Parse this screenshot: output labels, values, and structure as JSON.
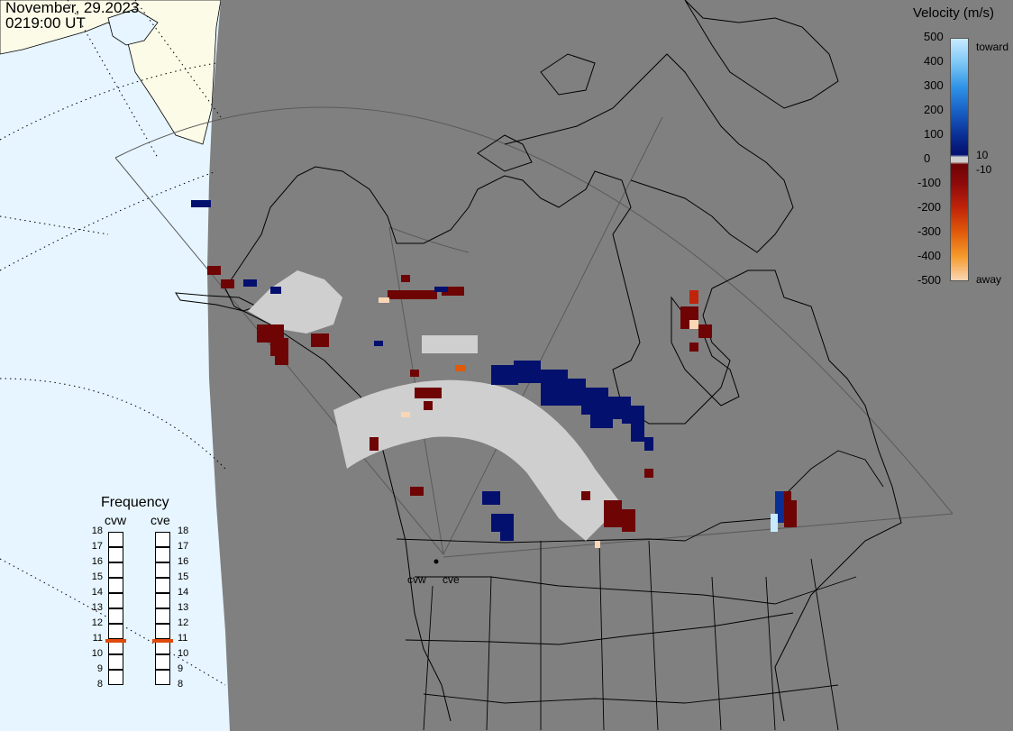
{
  "header": {
    "date": "November, 29.2023",
    "time": "0219:00 UT"
  },
  "velocity_scale": {
    "title": "Velocity (m/s)",
    "ticks": [
      "500",
      "400",
      "300",
      "200",
      "100",
      "0",
      "-100",
      "-200",
      "-300",
      "-400",
      "-500"
    ],
    "label_toward": "toward",
    "label_away": "away",
    "label_pos_threshold": "10",
    "label_neg_threshold": "-10",
    "colors": {
      "toward_500": "#c7eaff",
      "toward_400": "#7dc8f5",
      "toward_300": "#2f93e6",
      "toward_200": "#1860c6",
      "toward_100": "#0a2f94",
      "toward_10": "#04106e",
      "zero": "#cfcfcf",
      "away_10": "#6e0404",
      "away_100": "#8e0a0a",
      "away_200": "#c0240a",
      "away_300": "#e05a0a",
      "away_400": "#f59a2a",
      "away_500": "#fad6b4"
    }
  },
  "radars": [
    {
      "name": "cvw"
    },
    {
      "name": "cve"
    }
  ],
  "frequency_panel": {
    "title": "Frequency",
    "columns": [
      {
        "name": "cvw",
        "frequency_mhz": 10.9
      },
      {
        "name": "cve",
        "frequency_mhz": 10.9
      }
    ],
    "scale": [
      "18",
      "17",
      "16",
      "15",
      "14",
      "13",
      "12",
      "11",
      "10",
      "9",
      "8"
    ],
    "indicator_color": "#e04a0a"
  },
  "map_colors": {
    "night_background": "#808080",
    "day_ocean": "#e6f5ff",
    "day_land": "#fbfbe8",
    "ground_scatter": "#cfcfcf",
    "coastline": "#000000"
  }
}
